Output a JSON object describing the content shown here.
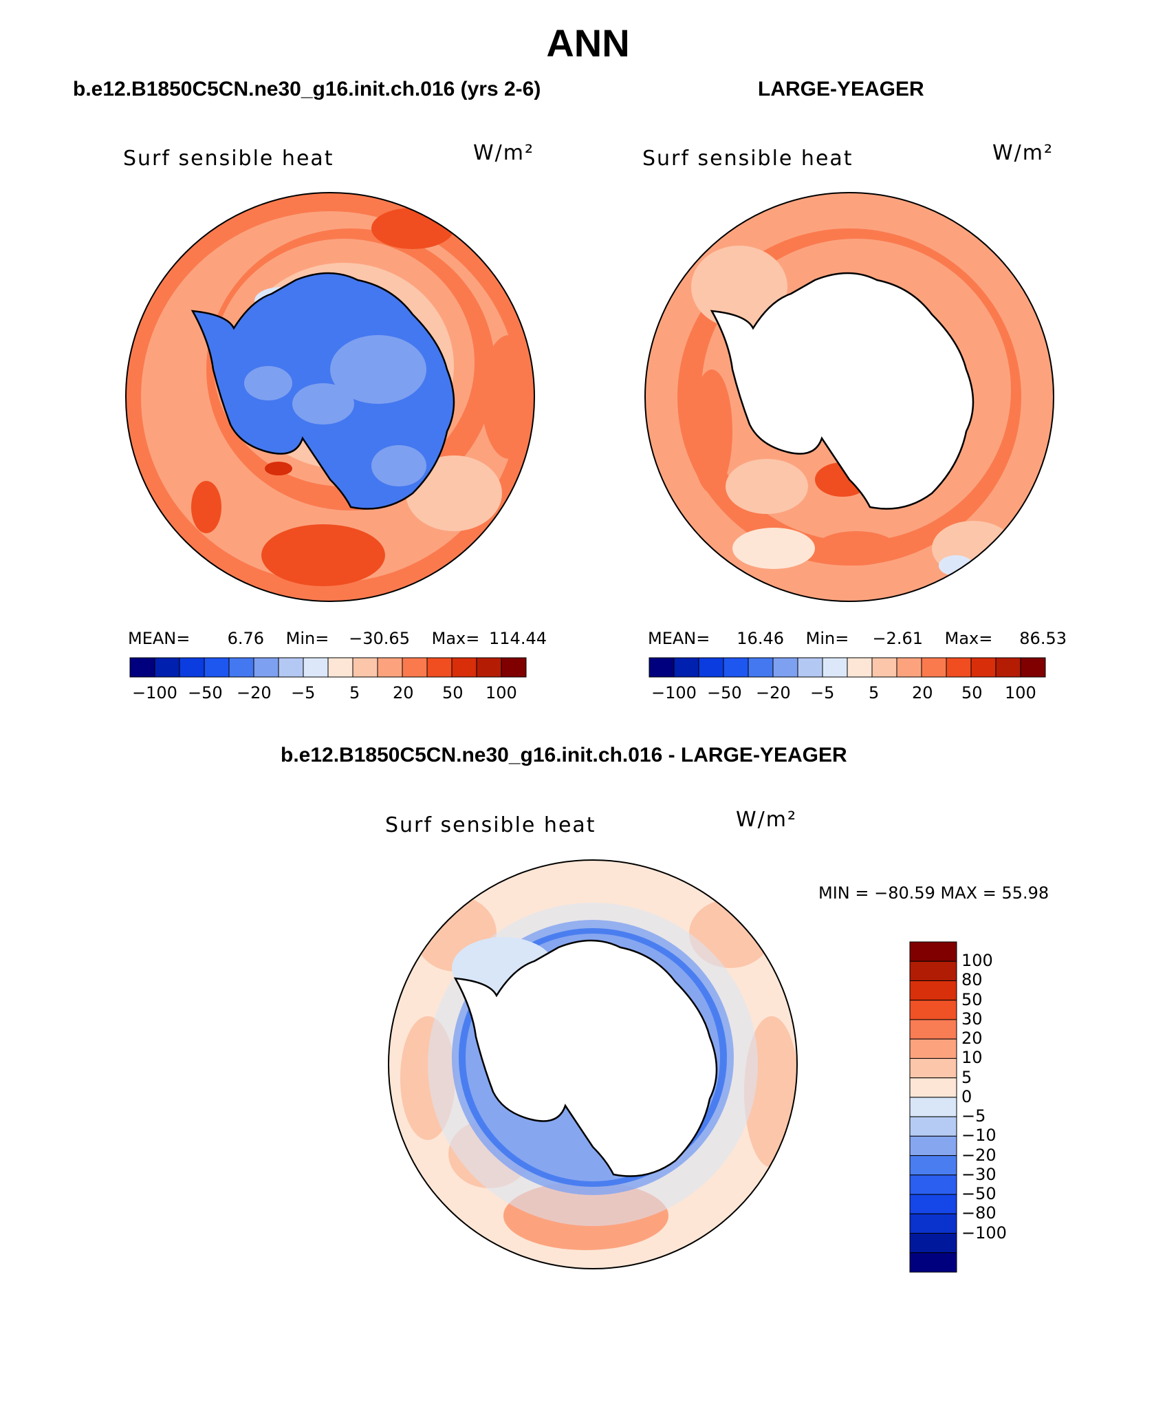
{
  "figure_title": "ANN",
  "top_left": {
    "case_title": "b.e12.B1850C5CN.ne30_g16.init.ch.016 (yrs 2-6)",
    "variable": "Surf sensible heat",
    "units": "W/m²",
    "mean_label": "MEAN=",
    "mean_value": "6.76",
    "min_label": "Min=",
    "min_value": "−30.65",
    "max_label": "Max=",
    "max_value": "114.44",
    "colorbar_labels": [
      "−100",
      "−50",
      "−20",
      "−5",
      "5",
      "20",
      "50",
      "100"
    ]
  },
  "top_right": {
    "case_title": "LARGE-YEAGER",
    "variable": "Surf sensible heat",
    "units": "W/m²",
    "mean_label": "MEAN=",
    "mean_value": "16.46",
    "min_label": "Min=",
    "min_value": "−2.61",
    "max_label": "Max=",
    "max_value": "86.53",
    "colorbar_labels": [
      "−100",
      "−50",
      "−20",
      "−5",
      "5",
      "20",
      "50",
      "100"
    ]
  },
  "bottom": {
    "case_title": "b.e12.B1850C5CN.ne30_g16.init.ch.016 - LARGE-YEAGER",
    "variable": "Surf sensible heat",
    "units": "W/m²",
    "minmax_text": "MIN = −80.59 MAX =   55.98",
    "colorbar_labels": [
      "100",
      "80",
      "50",
      "30",
      "20",
      "10",
      "5",
      "0",
      "−5",
      "−10",
      "−20",
      "−30",
      "−50",
      "−80",
      "−100"
    ]
  },
  "colors": {
    "abs_scale": [
      "#00007f",
      "#0020b0",
      "#0a3ce0",
      "#1e56f0",
      "#4478f0",
      "#7ea0f0",
      "#b4c8f4",
      "#dce8fa",
      "#fde6d6",
      "#fcc6aa",
      "#fca37e",
      "#fa7a4e",
      "#f04e20",
      "#d82e0a",
      "#b41c04",
      "#800000"
    ],
    "diff_scale": [
      "#00007f",
      "#00189c",
      "#0a32cc",
      "#1446e8",
      "#2a5ff0",
      "#4a7ef0",
      "#86a6f0",
      "#b6cbf4",
      "#d8e6f8",
      "#fde6d6",
      "#fcc6aa",
      "#fca37e",
      "#f87c54",
      "#f05226",
      "#d8300a",
      "#b01c04",
      "#800000"
    ],
    "land": "#ffffff",
    "coast": "#000000"
  }
}
